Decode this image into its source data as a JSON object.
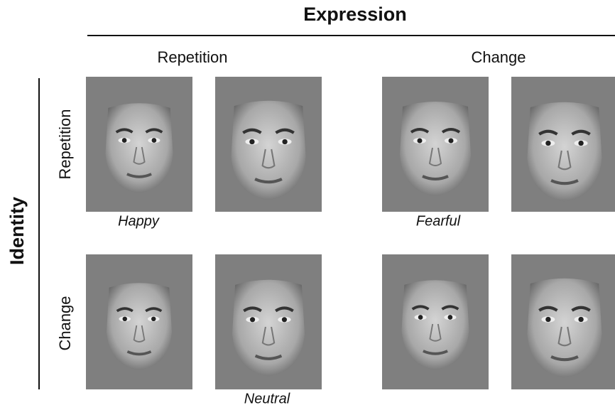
{
  "title": "Expression",
  "column_headers": [
    "Repetition",
    "Change"
  ],
  "row_axis_label": "Identity",
  "row_headers": [
    "Repetition",
    "Change"
  ],
  "captions": [
    "Happy",
    "Fearful",
    "Neutral"
  ]
}
